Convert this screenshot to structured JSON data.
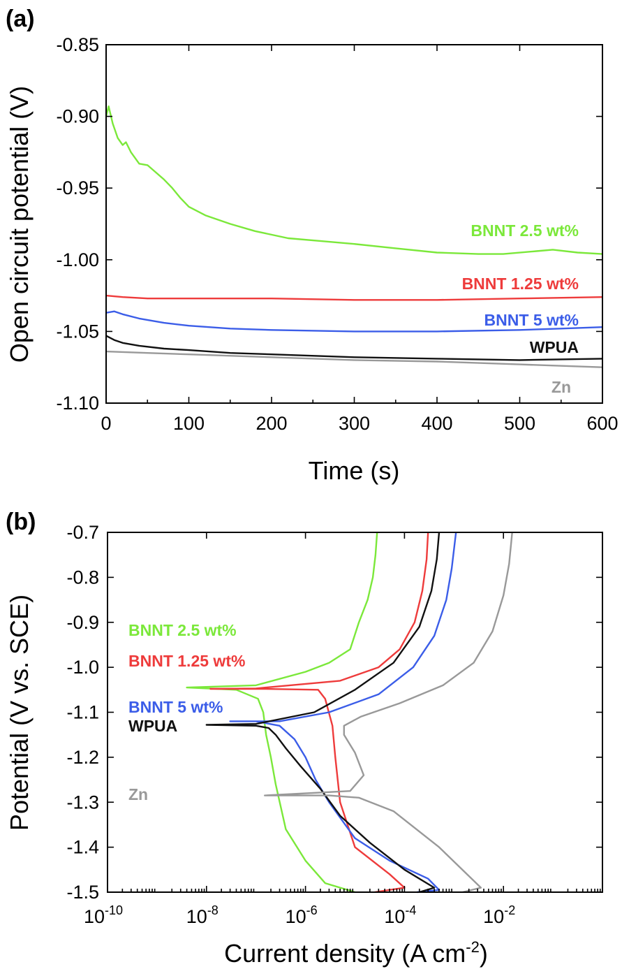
{
  "chart_data": [
    {
      "panel_label": "(a)",
      "type": "line",
      "xlabel": "Time (s)",
      "ylabel": "Open circuit potential (V)",
      "xlim": [
        0,
        600
      ],
      "ylim": [
        -1.1,
        -0.85
      ],
      "x_ticks": [
        "0",
        "100",
        "200",
        "300",
        "400",
        "500",
        "600"
      ],
      "y_ticks": [
        "-0.85",
        "-0.90",
        "-0.95",
        "-1.00",
        "-1.05",
        "-1.10"
      ],
      "series": [
        {
          "name": "BNNT 2.5 wt%",
          "color": "#7be83a",
          "x": [
            0,
            3,
            8,
            14,
            20,
            24,
            30,
            40,
            50,
            60,
            70,
            80,
            90,
            100,
            120,
            150,
            180,
            220,
            260,
            300,
            350,
            400,
            450,
            480,
            520,
            540,
            570,
            600
          ],
          "y": [
            -0.9,
            -0.893,
            -0.905,
            -0.915,
            -0.92,
            -0.918,
            -0.925,
            -0.933,
            -0.934,
            -0.939,
            -0.944,
            -0.95,
            -0.957,
            -0.963,
            -0.969,
            -0.975,
            -0.98,
            -0.985,
            -0.987,
            -0.989,
            -0.992,
            -0.995,
            -0.996,
            -0.996,
            -0.994,
            -0.993,
            -0.995,
            -0.996
          ]
        },
        {
          "name": "BNNT 1.25 wt%",
          "color": "#ee3b3b",
          "x": [
            0,
            20,
            50,
            100,
            200,
            300,
            400,
            500,
            600
          ],
          "y": [
            -1.025,
            -1.026,
            -1.027,
            -1.027,
            -1.027,
            -1.028,
            -1.028,
            -1.027,
            -1.026
          ]
        },
        {
          "name": "BNNT 5 wt%",
          "color": "#3b5de8",
          "x": [
            0,
            10,
            20,
            40,
            70,
            100,
            150,
            200,
            300,
            400,
            500,
            550,
            600
          ],
          "y": [
            -1.037,
            -1.036,
            -1.038,
            -1.041,
            -1.044,
            -1.046,
            -1.048,
            -1.049,
            -1.05,
            -1.05,
            -1.049,
            -1.048,
            -1.047
          ]
        },
        {
          "name": "WPUA",
          "color": "#111111",
          "x": [
            0,
            10,
            20,
            40,
            70,
            100,
            150,
            200,
            300,
            400,
            500,
            600
          ],
          "y": [
            -1.053,
            -1.056,
            -1.058,
            -1.06,
            -1.062,
            -1.063,
            -1.065,
            -1.066,
            -1.068,
            -1.069,
            -1.07,
            -1.069
          ]
        },
        {
          "name": "Zn",
          "color": "#999999",
          "x": [
            0,
            50,
            100,
            200,
            300,
            400,
            500,
            600
          ],
          "y": [
            -1.064,
            -1.065,
            -1.066,
            -1.068,
            -1.07,
            -1.071,
            -1.073,
            -1.075
          ]
        }
      ],
      "series_labels": [
        "BNNT 2.5 wt%",
        "BNNT 1.25 wt%",
        "BNNT 5 wt%",
        "WPUA",
        "Zn"
      ]
    },
    {
      "panel_label": "(b)",
      "type": "line",
      "xlabel": "Current density (A cm",
      "xlabel_sup": "-2",
      "xlabel_close": ")",
      "ylabel": "Potential (V vs. SCE)",
      "x_scale": "log",
      "xlim": [
        1e-10,
        1
      ],
      "ylim": [
        -1.5,
        -0.7
      ],
      "x_ticks": [
        {
          "base": "10",
          "exp": "-10"
        },
        {
          "base": "10",
          "exp": "-8"
        },
        {
          "base": "10",
          "exp": "-6"
        },
        {
          "base": "10",
          "exp": "-4"
        },
        {
          "base": "10",
          "exp": "-2"
        }
      ],
      "y_ticks": [
        "-0.7",
        "-0.8",
        "-0.9",
        "-1.0",
        "-1.1",
        "-1.2",
        "-1.3",
        "-1.4",
        "-1.5"
      ],
      "series": [
        {
          "name": "BNNT 2.5 wt%",
          "color": "#7be83a",
          "x": [
            1e-05,
            2.5e-06,
            1e-06,
            4e-07,
            2.5e-07,
            2e-07,
            1.6e-07,
            1.4e-07,
            1.1e-07,
            4e-08,
            4e-09,
            1e-07,
            1e-06,
            3e-06,
            8e-06,
            1.2e-05,
            1.8e-05,
            2.3e-05,
            2.6e-05,
            2.8e-05
          ],
          "y": [
            -1.5,
            -1.48,
            -1.43,
            -1.36,
            -1.26,
            -1.2,
            -1.15,
            -1.1,
            -1.07,
            -1.05,
            -1.045,
            -1.04,
            -1.01,
            -0.99,
            -0.96,
            -0.9,
            -0.85,
            -0.8,
            -0.75,
            -0.7
          ]
        },
        {
          "name": "BNNT 1.25 wt%",
          "color": "#ee3b3b",
          "x": [
            2.5e-05,
            0.0001,
            5e-05,
            1e-05,
            5e-06,
            4e-06,
            3.5e-06,
            2.5e-06,
            1.8e-06,
            1.5e-07,
            1.2e-08,
            1e-07,
            5e-06,
            3e-05,
            8e-05,
            0.00016,
            0.00023,
            0.00028,
            0.0003
          ],
          "y": [
            -1.5,
            -1.49,
            -1.46,
            -1.4,
            -1.3,
            -1.2,
            -1.13,
            -1.07,
            -1.05,
            -1.048,
            -1.048,
            -1.047,
            -1.03,
            -1.0,
            -0.96,
            -0.9,
            -0.83,
            -0.76,
            -0.7
          ]
        },
        {
          "name": "BNNT 5 wt%",
          "color": "#3b5de8",
          "x": [
            0.00018,
            0.0005,
            0.0003,
            5e-05,
            1e-05,
            3e-06,
            1.6e-06,
            1e-06,
            6e-07,
            3e-07,
            1e-07,
            3e-08,
            3e-07,
            3e-06,
            3e-05,
            0.00015,
            0.0004,
            0.0007,
            0.0009,
            0.0011
          ],
          "y": [
            -1.5,
            -1.495,
            -1.47,
            -1.43,
            -1.38,
            -1.3,
            -1.25,
            -1.2,
            -1.16,
            -1.13,
            -1.12,
            -1.12,
            -1.12,
            -1.1,
            -1.06,
            -1.0,
            -0.93,
            -0.85,
            -0.78,
            -0.7
          ]
        },
        {
          "name": "WPUA",
          "color": "#111111",
          "x": [
            0.0002,
            0.0004,
            0.0001,
            2e-05,
            5e-06,
            2e-06,
            8e-07,
            4e-07,
            2.5e-07,
            1.8e-07,
            1e-07,
            1e-08,
            1e-07,
            1.5e-06,
            1e-05,
            6e-05,
            0.0002,
            0.00035,
            0.00045,
            0.0005
          ],
          "y": [
            -1.5,
            -1.49,
            -1.45,
            -1.39,
            -1.33,
            -1.27,
            -1.22,
            -1.18,
            -1.15,
            -1.135,
            -1.13,
            -1.128,
            -1.126,
            -1.1,
            -1.05,
            -0.99,
            -0.91,
            -0.83,
            -0.76,
            -0.7
          ]
        },
        {
          "name": "Zn",
          "color": "#999999",
          "x": [
            0.0015,
            0.0035,
            0.0005,
            6e-05,
            1.2e-05,
            3e-06,
            1.5e-07,
            8e-06,
            1.5e-05,
            1e-05,
            6e-06,
            6e-06,
            1.3e-05,
            8e-05,
            0.0006,
            0.0025,
            0.006,
            0.01,
            0.013,
            0.015
          ],
          "y": [
            -1.5,
            -1.49,
            -1.4,
            -1.32,
            -1.29,
            -1.285,
            -1.285,
            -1.275,
            -1.24,
            -1.19,
            -1.15,
            -1.13,
            -1.11,
            -1.08,
            -1.04,
            -0.99,
            -0.92,
            -0.84,
            -0.77,
            -0.7
          ]
        }
      ],
      "series_labels": [
        "BNNT 2.5 wt%",
        "BNNT 1.25 wt%",
        "BNNT 5 wt%",
        "WPUA",
        "Zn"
      ]
    }
  ]
}
